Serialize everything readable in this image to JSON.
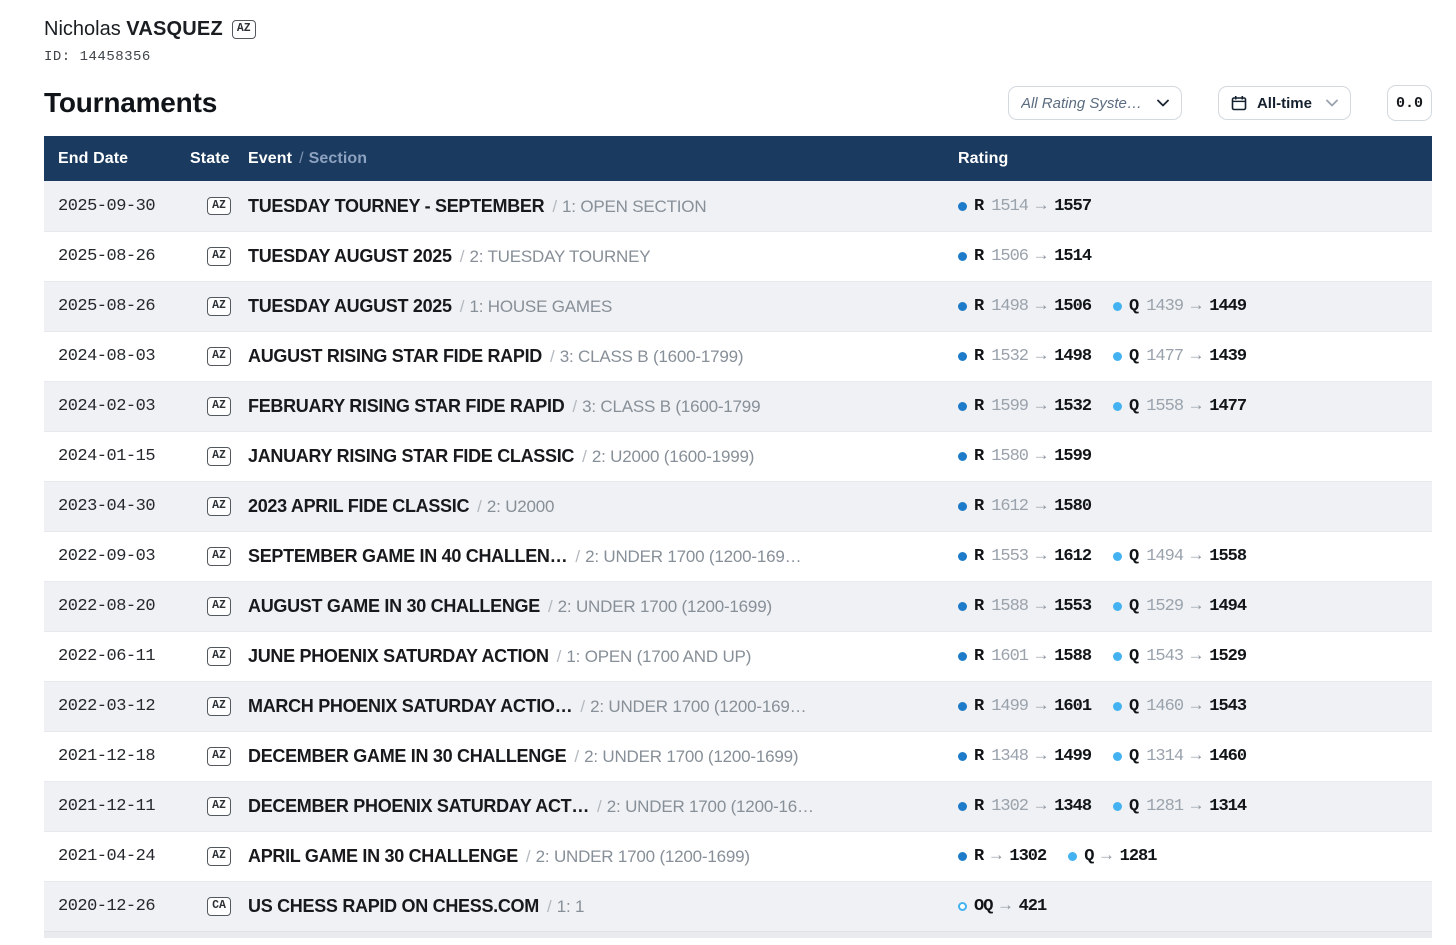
{
  "player": {
    "first_name": "Nicholas",
    "last_name": "VASQUEZ",
    "state_badge": "AZ",
    "id_label": "ID:",
    "id_value": "14458356"
  },
  "heading": "Tournaments",
  "controls": {
    "rating_system_select": {
      "value": "All Rating Syste…"
    },
    "time_range_select": {
      "value": "All-time",
      "icon": "calendar-icon"
    },
    "score_box": {
      "value": "0.0"
    }
  },
  "table": {
    "headers": {
      "end_date": "End Date",
      "state": "State",
      "event": "Event",
      "separator": "/",
      "section": "Section",
      "rating": "Rating"
    },
    "arrow": "→",
    "row_separator": "/",
    "rows": [
      {
        "date": "2025-09-30",
        "state": "AZ",
        "event": "TUESDAY TOURNEY - SEPTEMBER",
        "section": "1: OPEN SECTION",
        "ratings": [
          {
            "type": "r",
            "label": "R",
            "old": "1514",
            "new": "1557"
          }
        ]
      },
      {
        "date": "2025-08-26",
        "state": "AZ",
        "event": "TUESDAY AUGUST 2025",
        "section": "2: TUESDAY TOURNEY",
        "ratings": [
          {
            "type": "r",
            "label": "R",
            "old": "1506",
            "new": "1514"
          }
        ]
      },
      {
        "date": "2025-08-26",
        "state": "AZ",
        "event": "TUESDAY AUGUST 2025",
        "section": "1: HOUSE GAMES",
        "ratings": [
          {
            "type": "r",
            "label": "R",
            "old": "1498",
            "new": "1506"
          },
          {
            "type": "q",
            "label": "Q",
            "old": "1439",
            "new": "1449"
          }
        ]
      },
      {
        "date": "2024-08-03",
        "state": "AZ",
        "event": "AUGUST RISING STAR FIDE RAPID",
        "section": "3: CLASS B (1600-1799)",
        "ratings": [
          {
            "type": "r",
            "label": "R",
            "old": "1532",
            "new": "1498"
          },
          {
            "type": "q",
            "label": "Q",
            "old": "1477",
            "new": "1439"
          }
        ]
      },
      {
        "date": "2024-02-03",
        "state": "AZ",
        "event": "FEBRUARY RISING STAR FIDE RAPID",
        "section": "3: CLASS B (1600-1799",
        "ratings": [
          {
            "type": "r",
            "label": "R",
            "old": "1599",
            "new": "1532"
          },
          {
            "type": "q",
            "label": "Q",
            "old": "1558",
            "new": "1477"
          }
        ]
      },
      {
        "date": "2024-01-15",
        "state": "AZ",
        "event": "JANUARY RISING STAR FIDE CLASSIC",
        "section": "2: U2000 (1600-1999)",
        "ratings": [
          {
            "type": "r",
            "label": "R",
            "old": "1580",
            "new": "1599"
          }
        ]
      },
      {
        "date": "2023-04-30",
        "state": "AZ",
        "event": "2023 APRIL FIDE CLASSIC",
        "section": "2: U2000",
        "ratings": [
          {
            "type": "r",
            "label": "R",
            "old": "1612",
            "new": "1580"
          }
        ]
      },
      {
        "date": "2022-09-03",
        "state": "AZ",
        "event": "SEPTEMBER GAME IN 40 CHALLEN…",
        "section": "2: UNDER 1700 (1200-169…",
        "ratings": [
          {
            "type": "r",
            "label": "R",
            "old": "1553",
            "new": "1612"
          },
          {
            "type": "q",
            "label": "Q",
            "old": "1494",
            "new": "1558"
          }
        ]
      },
      {
        "date": "2022-08-20",
        "state": "AZ",
        "event": "AUGUST GAME IN 30 CHALLENGE",
        "section": "2: UNDER 1700 (1200-1699)",
        "ratings": [
          {
            "type": "r",
            "label": "R",
            "old": "1588",
            "new": "1553"
          },
          {
            "type": "q",
            "label": "Q",
            "old": "1529",
            "new": "1494"
          }
        ]
      },
      {
        "date": "2022-06-11",
        "state": "AZ",
        "event": "JUNE PHOENIX SATURDAY ACTION",
        "section": "1: OPEN (1700 AND UP)",
        "ratings": [
          {
            "type": "r",
            "label": "R",
            "old": "1601",
            "new": "1588"
          },
          {
            "type": "q",
            "label": "Q",
            "old": "1543",
            "new": "1529"
          }
        ]
      },
      {
        "date": "2022-03-12",
        "state": "AZ",
        "event": "MARCH PHOENIX SATURDAY ACTIO…",
        "section": "2: UNDER 1700 (1200-169…",
        "ratings": [
          {
            "type": "r",
            "label": "R",
            "old": "1499",
            "new": "1601"
          },
          {
            "type": "q",
            "label": "Q",
            "old": "1460",
            "new": "1543"
          }
        ]
      },
      {
        "date": "2021-12-18",
        "state": "AZ",
        "event": "DECEMBER GAME IN 30 CHALLENGE",
        "section": "2: UNDER 1700 (1200-1699)",
        "ratings": [
          {
            "type": "r",
            "label": "R",
            "old": "1348",
            "new": "1499"
          },
          {
            "type": "q",
            "label": "Q",
            "old": "1314",
            "new": "1460"
          }
        ]
      },
      {
        "date": "2021-12-11",
        "state": "AZ",
        "event": "DECEMBER PHOENIX SATURDAY ACT…",
        "section": "2: UNDER 1700 (1200-16…",
        "ratings": [
          {
            "type": "r",
            "label": "R",
            "old": "1302",
            "new": "1348"
          },
          {
            "type": "q",
            "label": "Q",
            "old": "1281",
            "new": "1314"
          }
        ]
      },
      {
        "date": "2021-04-24",
        "state": "AZ",
        "event": "APRIL GAME IN 30 CHALLENGE",
        "section": "2: UNDER 1700 (1200-1699)",
        "ratings": [
          {
            "type": "r",
            "label": "R",
            "old": "",
            "new": "1302"
          },
          {
            "type": "q",
            "label": "Q",
            "old": "",
            "new": "1281"
          }
        ]
      },
      {
        "date": "2020-12-26",
        "state": "CA",
        "event": "US CHESS RAPID ON CHESS.COM",
        "section": "1: 1",
        "ratings": [
          {
            "type": "oq",
            "label": "OQ",
            "old": "",
            "new": "421"
          }
        ]
      }
    ]
  },
  "colors": {
    "table_header_bg": "#1a3a5f",
    "regular_rating_dot": "#1d7bc9",
    "quick_rating_dot": "#44b2f1",
    "online_quick_ring": "#44b2f1",
    "row_alt_bg": "#eff1f4"
  }
}
